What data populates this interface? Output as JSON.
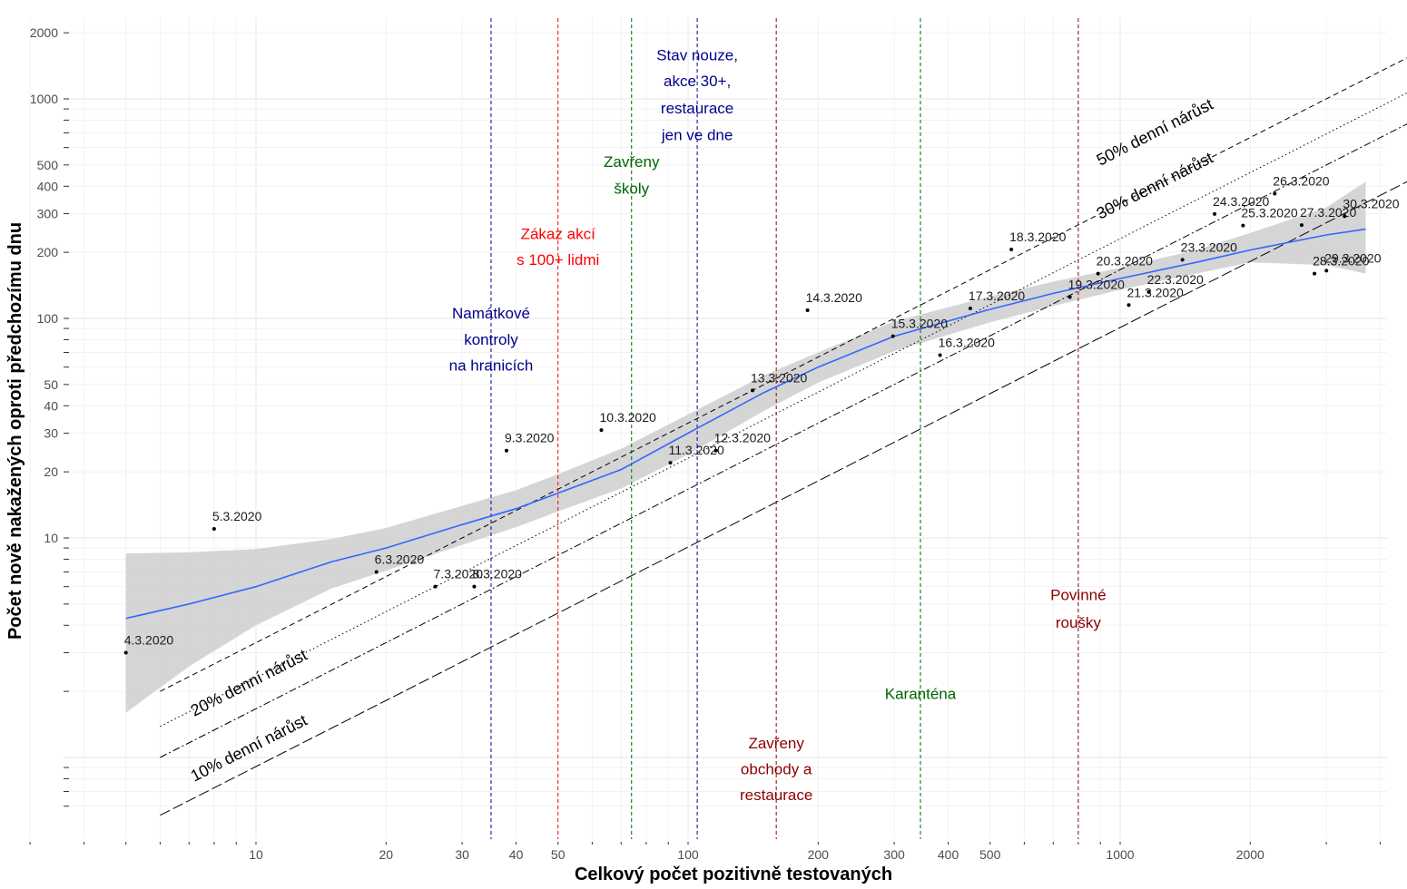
{
  "chart_data": {
    "type": "scatter",
    "title": "",
    "xlabel": "Celkový počet pozitivně testovaných",
    "ylabel": "Počet nově nakažených oproti předchozímu dnu",
    "x_scale": "log10",
    "y_scale": "log10",
    "xlim": [
      2.7,
      5600
    ],
    "ylim": [
      0.52,
      2450
    ],
    "x_ticks": [
      10,
      20,
      30,
      40,
      50,
      100,
      200,
      300,
      400,
      500,
      1000,
      2000
    ],
    "y_ticks": [
      10,
      20,
      30,
      40,
      50,
      100,
      200,
      300,
      400,
      500,
      1000,
      2000
    ],
    "grid": true,
    "points": [
      {
        "label": "4.3.2020",
        "x": 5,
        "y": 3
      },
      {
        "label": "5.3.2020",
        "x": 8,
        "y": 11
      },
      {
        "label": "6.3.2020",
        "x": 19,
        "y": 7
      },
      {
        "label": "7.3.2020",
        "x": 26,
        "y": 6
      },
      {
        "label": "8.3.2020",
        "x": 32,
        "y": 6
      },
      {
        "label": "9.3.2020",
        "x": 38,
        "y": 25
      },
      {
        "label": "10.3.2020",
        "x": 63,
        "y": 31
      },
      {
        "label": "11.3.2020",
        "x": 91,
        "y": 22
      },
      {
        "label": "12.3.2020",
        "x": 116,
        "y": 25
      },
      {
        "label": "13.3.2020",
        "x": 141,
        "y": 47
      },
      {
        "label": "14.3.2020",
        "x": 189,
        "y": 109
      },
      {
        "label": "15.3.2020",
        "x": 298,
        "y": 83
      },
      {
        "label": "16.3.2020",
        "x": 383,
        "y": 68
      },
      {
        "label": "17.3.2020",
        "x": 450,
        "y": 111
      },
      {
        "label": "18.3.2020",
        "x": 560,
        "y": 206
      },
      {
        "label": "19.3.2020",
        "x": 765,
        "y": 125
      },
      {
        "label": "20.3.2020",
        "x": 889,
        "y": 160
      },
      {
        "label": "21.3.2020",
        "x": 1047,
        "y": 115
      },
      {
        "label": "22.3.2020",
        "x": 1165,
        "y": 132
      },
      {
        "label": "23.3.2020",
        "x": 1394,
        "y": 185
      },
      {
        "label": "24.3.2020",
        "x": 1654,
        "y": 299
      },
      {
        "label": "25.3.2020",
        "x": 1925,
        "y": 265
      },
      {
        "label": "26.3.2020",
        "x": 2279,
        "y": 370
      },
      {
        "label": "27.3.2020",
        "x": 2631,
        "y": 266
      },
      {
        "label": "28.3.2020",
        "x": 2817,
        "y": 160
      },
      {
        "label": "29.3.2020",
        "x": 3002,
        "y": 165
      },
      {
        "label": "30.3.2020",
        "x": 3308,
        "y": 292
      }
    ],
    "trend_line": {
      "x": [
        5,
        7,
        10,
        15,
        20,
        30,
        40,
        50,
        70,
        100,
        150,
        200,
        300,
        500,
        700,
        1000,
        1500,
        2000,
        3000,
        3700
      ],
      "y": [
        4.3,
        5.0,
        6.0,
        7.8,
        9.0,
        11.5,
        13.6,
        16,
        20.5,
        30,
        46,
        60,
        83,
        110,
        130,
        152,
        180,
        205,
        240,
        255
      ],
      "band_low": [
        1.6,
        2.6,
        4.0,
        5.9,
        7.1,
        9.3,
        11.2,
        13.2,
        16.8,
        24,
        38,
        51,
        71,
        96,
        114,
        135,
        160,
        180,
        175,
        160
      ],
      "band_high": [
        8.5,
        8.6,
        8.9,
        9.9,
        11.1,
        14,
        16.5,
        19.5,
        25.5,
        36.5,
        55,
        70,
        97,
        126,
        147,
        170,
        205,
        245,
        320,
        420
      ],
      "color": "#3366ff"
    },
    "growth_lines": [
      {
        "label": "50% denní nárůst",
        "rate": 0.5,
        "style": "dashed"
      },
      {
        "label": "30% denní nárůst",
        "rate": 0.3,
        "style": "dotted"
      },
      {
        "label": "20% denní nárůst",
        "rate": 0.2,
        "style": "dashdot"
      },
      {
        "label": "10% denní nárůst",
        "rate": 0.1,
        "style": "longdash"
      }
    ],
    "events": [
      {
        "x": 35,
        "color": "#00008b",
        "lines": [
          "Namátkové",
          "kontroly",
          "na hranicích"
        ],
        "y_lines": [
          100,
          76,
          58
        ]
      },
      {
        "x": 50,
        "color": "#ff0000",
        "lines": [
          "Zákaz akcí",
          "s 100+ lidmi"
        ],
        "y_lines": [
          230,
          175
        ]
      },
      {
        "x": 74,
        "color": "#006400",
        "lines": [
          "Zavřeny",
          "školy"
        ],
        "y_lines": [
          490,
          370
        ]
      },
      {
        "x": 105,
        "color": "#00008b",
        "lines": [
          "Stav nouze,",
          "akce 30+,",
          "restaurace",
          "jen ve dne"
        ],
        "y_lines": [
          1500,
          1140,
          860,
          650
        ]
      },
      {
        "x": 160,
        "color": "#8b0000",
        "lines": [
          "Zavřeny",
          "obchody a",
          "restaurace"
        ],
        "y_lines": [
          1.1,
          0.84,
          0.64
        ]
      },
      {
        "x": 345,
        "color": "#006400",
        "lines": [
          "Karanténa"
        ],
        "y_lines": [
          1.85
        ]
      },
      {
        "x": 800,
        "color": "#8b0000",
        "lines": [
          "Povinné",
          "roušky"
        ],
        "y_lines": [
          5.2,
          3.9
        ]
      }
    ]
  }
}
